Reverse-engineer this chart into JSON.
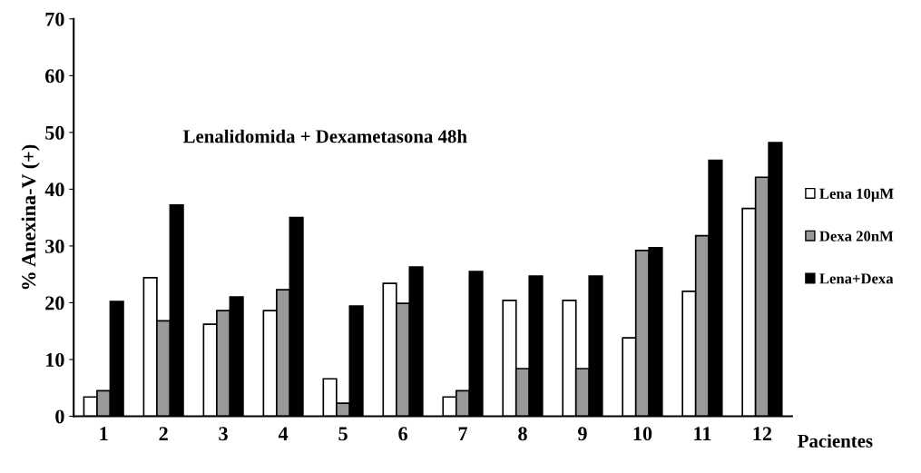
{
  "chart_data": {
    "type": "bar",
    "title": "Lenalidomida + Dexametasona 48h",
    "xlabel": "Pacientes",
    "ylabel": "% Anexina-V (+)",
    "categories": [
      "1",
      "2",
      "3",
      "4",
      "5",
      "6",
      "7",
      "8",
      "9",
      "10",
      "11",
      "12"
    ],
    "series": [
      {
        "name": "Lena 10µM",
        "color": "#ffffff",
        "values": [
          3.4,
          24.4,
          16.2,
          18.6,
          6.6,
          23.4,
          3.4,
          20.4,
          20.4,
          13.8,
          22.0,
          36.6
        ]
      },
      {
        "name": "Dexa 20nM",
        "color": "#999999",
        "values": [
          4.5,
          16.8,
          18.6,
          22.3,
          2.3,
          19.9,
          4.5,
          8.4,
          8.4,
          29.2,
          31.8,
          42.1
        ]
      },
      {
        "name": "Lena+Dexa",
        "color": "#000000",
        "values": [
          20.2,
          37.2,
          21.0,
          35.0,
          19.4,
          26.3,
          25.5,
          24.7,
          24.7,
          29.7,
          45.1,
          48.2
        ]
      }
    ],
    "ylim": [
      0,
      70
    ],
    "yticks": [
      0,
      10,
      20,
      30,
      40,
      50,
      60,
      70
    ],
    "grid": false,
    "legend": "right"
  }
}
